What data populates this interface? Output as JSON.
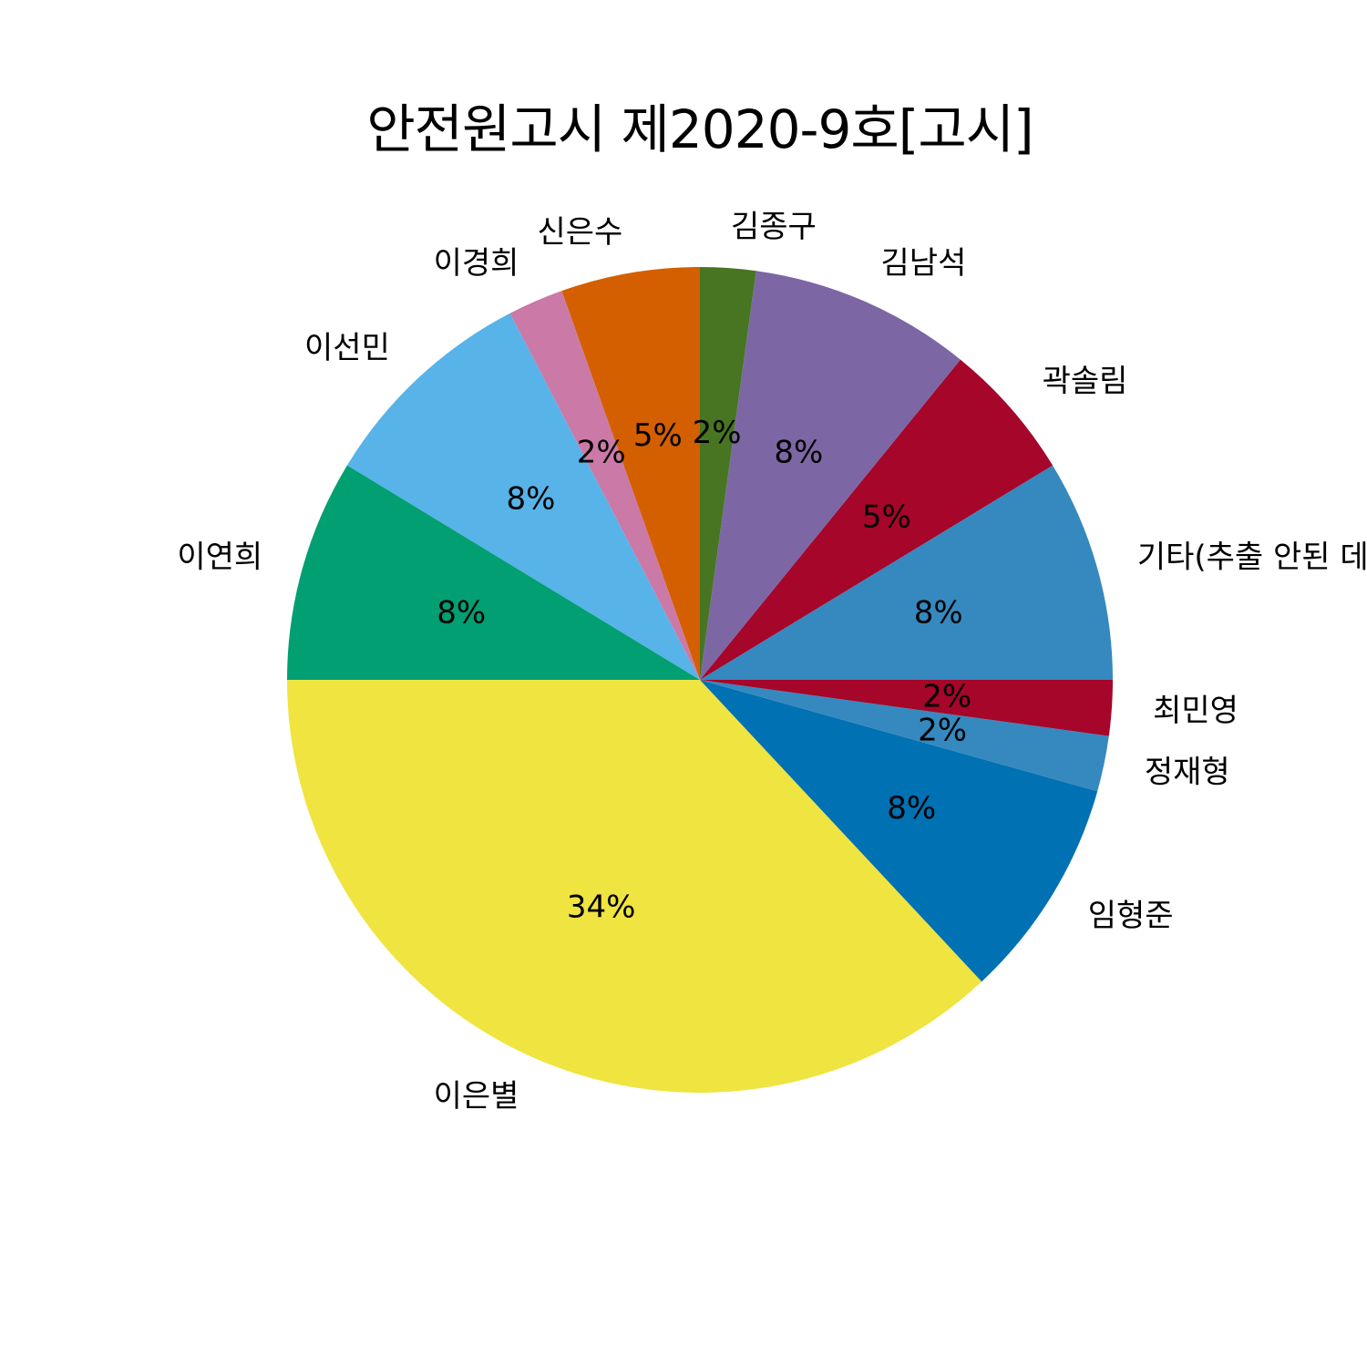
{
  "chart_data": {
    "type": "pie",
    "title": "안전원고시 제2020-9호[고시]",
    "start_angle_deg": 0,
    "direction": "counterclockwise",
    "slices": [
      {
        "label": "기타(추출 안된 데이터)",
        "percent": 8,
        "value_label": "8%",
        "color": "#3589bf"
      },
      {
        "label": "곽솔림",
        "percent": 5,
        "value_label": "5%",
        "color": "#a5062a"
      },
      {
        "label": "김남석",
        "percent": 8,
        "value_label": "8%",
        "color": "#7c67a4"
      },
      {
        "label": "김종구",
        "percent": 2,
        "value_label": "2%",
        "color": "#477522"
      },
      {
        "label": "신은수",
        "percent": 5,
        "value_label": "5%",
        "color": "#d45f00"
      },
      {
        "label": "이경희",
        "percent": 2,
        "value_label": "2%",
        "color": "#cb79a7"
      },
      {
        "label": "이선민",
        "percent": 8,
        "value_label": "8%",
        "color": "#57b3e8"
      },
      {
        "label": "이연희",
        "percent": 8,
        "value_label": "8%",
        "color": "#019f72"
      },
      {
        "label": "이은별",
        "percent": 34,
        "value_label": "34%",
        "color": "#efe440"
      },
      {
        "label": "임형준",
        "percent": 8,
        "value_label": "8%",
        "color": "#0071b2"
      },
      {
        "label": "정재형",
        "percent": 2,
        "value_label": "2%",
        "color": "#3589bf"
      },
      {
        "label": "최민영",
        "percent": 2,
        "value_label": "2%",
        "color": "#a5062a"
      }
    ]
  }
}
